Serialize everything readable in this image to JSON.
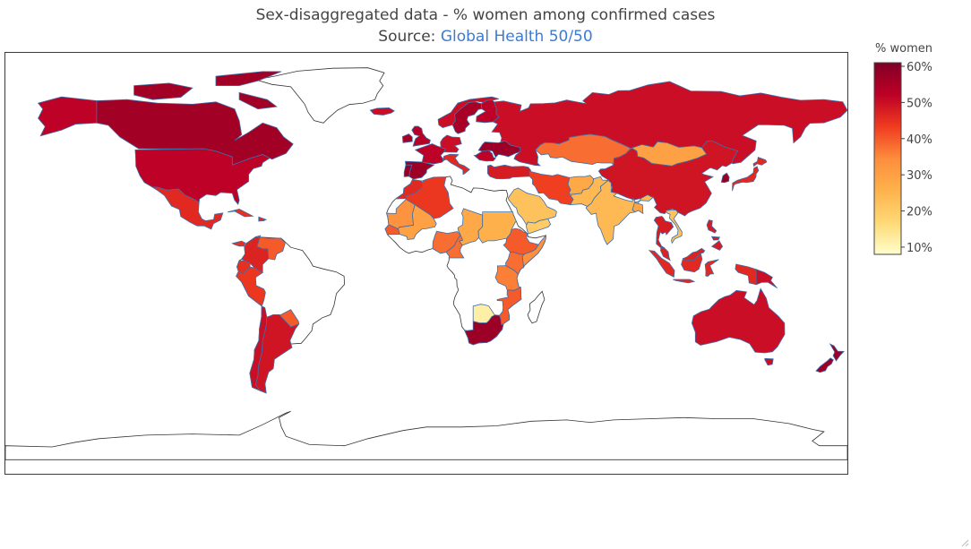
{
  "chart_data": {
    "type": "choropleth",
    "title_prefix": "Sex-disaggregated data - % women among confirmed cases",
    "source_label": "Source: ",
    "source_link": "Global Health 50/50",
    "colorbar": {
      "title": "% women",
      "range": [
        8,
        61
      ],
      "ticks": [
        10,
        20,
        30,
        40,
        50,
        60
      ],
      "tick_labels": [
        "10%",
        "20%",
        "30%",
        "40%",
        "50%",
        "60%"
      ],
      "colorscale": [
        "#ffffcc",
        "#fed976",
        "#feb24c",
        "#fd8d3c",
        "#f03b20",
        "#bd0026",
        "#800026"
      ]
    },
    "no_data_color": "#ffffff",
    "countries": [
      {
        "name": "Canada",
        "value": 56
      },
      {
        "name": "United States",
        "value": 52
      },
      {
        "name": "Mexico",
        "value": 46
      },
      {
        "name": "Cuba",
        "value": 45
      },
      {
        "name": "Dominican Republic",
        "value": 46
      },
      {
        "name": "Panama",
        "value": 45
      },
      {
        "name": "Colombia",
        "value": 47
      },
      {
        "name": "Venezuela",
        "value": 40
      },
      {
        "name": "Ecuador",
        "value": 45
      },
      {
        "name": "Peru",
        "value": 44
      },
      {
        "name": "Chile",
        "value": 50
      },
      {
        "name": "Argentina",
        "value": 49
      },
      {
        "name": "Paraguay",
        "value": 40
      },
      {
        "name": "Iceland",
        "value": 50
      },
      {
        "name": "United Kingdom",
        "value": 53
      },
      {
        "name": "Ireland",
        "value": 55
      },
      {
        "name": "Spain",
        "value": 57
      },
      {
        "name": "Portugal",
        "value": 58
      },
      {
        "name": "France",
        "value": 52
      },
      {
        "name": "Germany",
        "value": 50
      },
      {
        "name": "Italy",
        "value": 46
      },
      {
        "name": "Norway",
        "value": 50
      },
      {
        "name": "Sweden",
        "value": 55
      },
      {
        "name": "Finland",
        "value": 52
      },
      {
        "name": "Ukraine",
        "value": 57
      },
      {
        "name": "Romania",
        "value": 52
      },
      {
        "name": "Turkey",
        "value": 48
      },
      {
        "name": "Russia",
        "value": 50
      },
      {
        "name": "Kazakhstan",
        "value": 38
      },
      {
        "name": "Mongolia",
        "value": 30
      },
      {
        "name": "China",
        "value": 49
      },
      {
        "name": "Japan",
        "value": 46
      },
      {
        "name": "South Korea",
        "value": 58
      },
      {
        "name": "Iran",
        "value": 43
      },
      {
        "name": "Afghanistan",
        "value": 28
      },
      {
        "name": "Pakistan",
        "value": 24
      },
      {
        "name": "India",
        "value": 24
      },
      {
        "name": "Bangladesh",
        "value": 29
      },
      {
        "name": "Saudi Arabia",
        "value": 22
      },
      {
        "name": "Yemen",
        "value": 20
      },
      {
        "name": "Thailand",
        "value": 48
      },
      {
        "name": "Vietnam",
        "value": 22
      },
      {
        "name": "Philippines",
        "value": 48
      },
      {
        "name": "Malaysia",
        "value": 47
      },
      {
        "name": "Indonesia",
        "value": 46
      },
      {
        "name": "Papua New Guinea",
        "value": 50
      },
      {
        "name": "Australia",
        "value": 50
      },
      {
        "name": "New Zealand",
        "value": 57
      },
      {
        "name": "Morocco",
        "value": 46
      },
      {
        "name": "Algeria",
        "value": 44
      },
      {
        "name": "Mauritania",
        "value": 33
      },
      {
        "name": "Mali",
        "value": 30
      },
      {
        "name": "Senegal",
        "value": 40
      },
      {
        "name": "Nigeria",
        "value": 38
      },
      {
        "name": "Chad",
        "value": 28
      },
      {
        "name": "Sudan",
        "value": 26
      },
      {
        "name": "Cameroon",
        "value": 38
      },
      {
        "name": "Ethiopia",
        "value": 40
      },
      {
        "name": "Somalia",
        "value": 34
      },
      {
        "name": "Kenya",
        "value": 38
      },
      {
        "name": "Tanzania",
        "value": 36
      },
      {
        "name": "Mozambique",
        "value": 40
      },
      {
        "name": "Botswana",
        "value": 12
      },
      {
        "name": "South Africa",
        "value": 57
      }
    ]
  }
}
